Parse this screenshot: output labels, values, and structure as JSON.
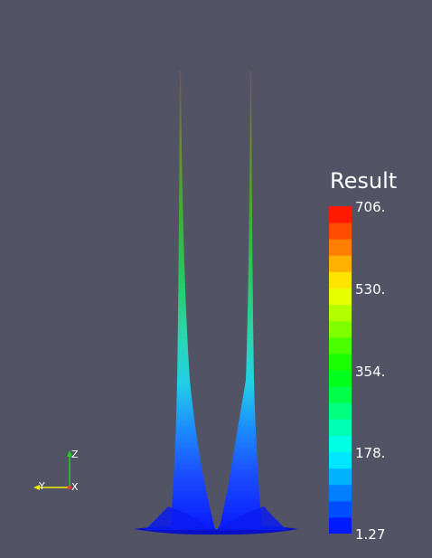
{
  "colorbar": {
    "title": "Result",
    "ticks": [
      "706.",
      "530.",
      "354.",
      "178.",
      "1.27"
    ],
    "range": [
      1.27,
      706
    ]
  },
  "orientation_axes": {
    "labels": [
      "Z",
      "Y",
      "X"
    ],
    "colors": {
      "z": "#22cc22",
      "y": "#eeee00",
      "x": "#ff3333"
    }
  },
  "colors": {
    "background": "#525466"
  }
}
